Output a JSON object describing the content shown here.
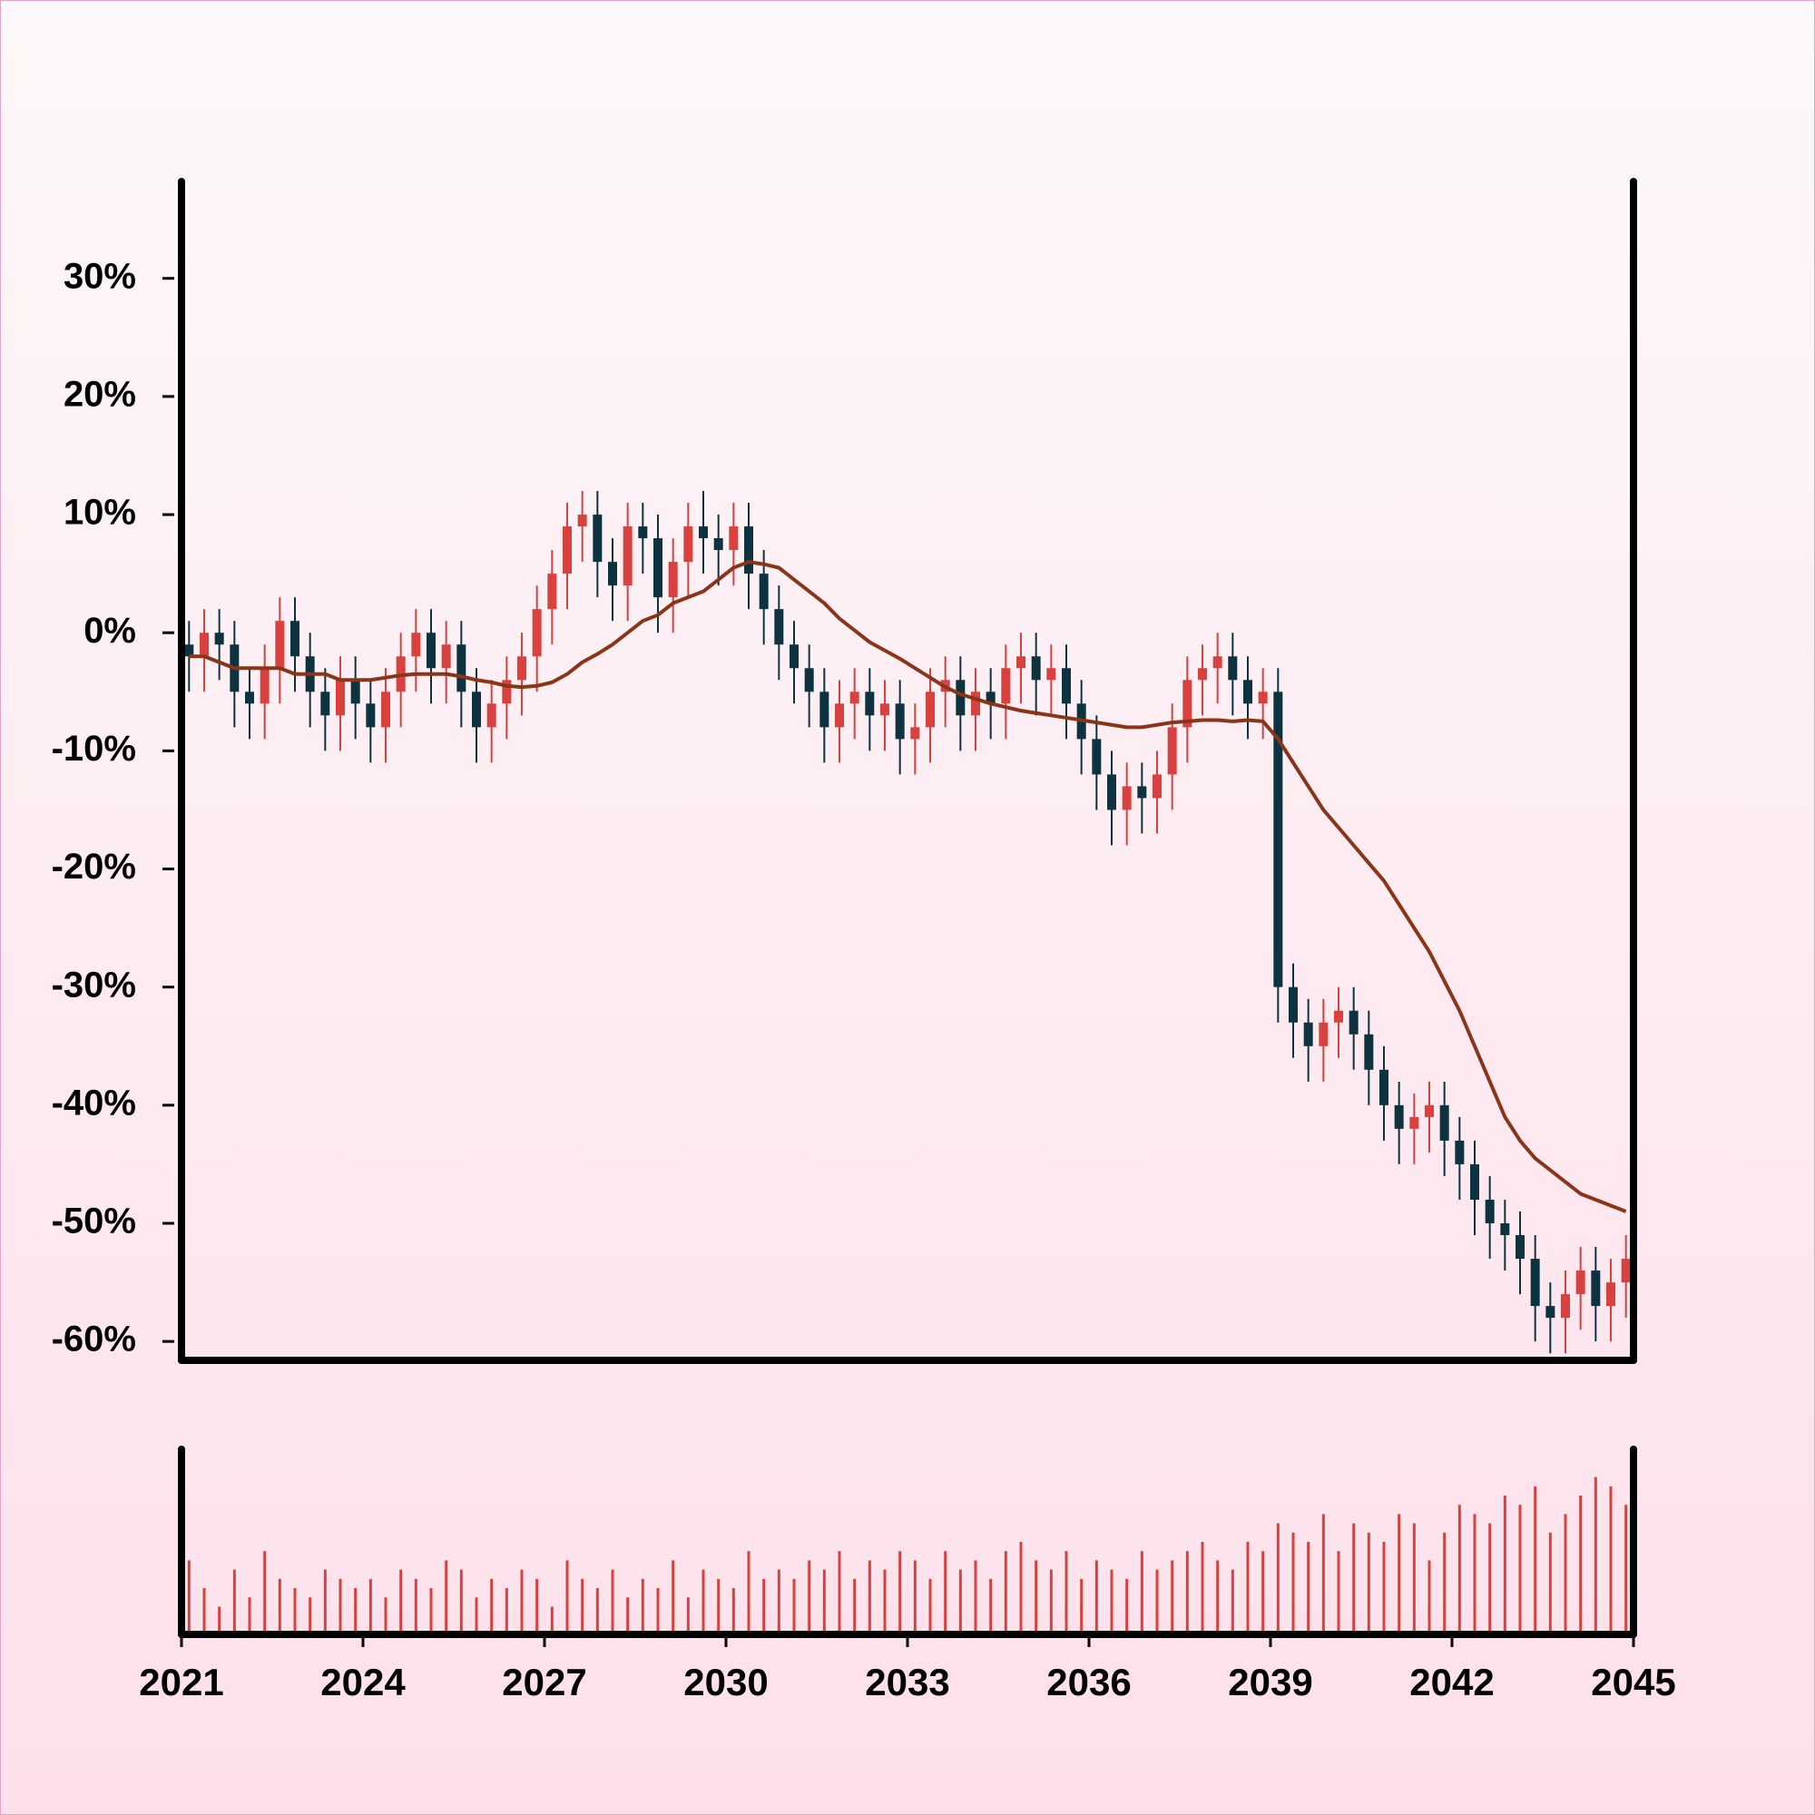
{
  "chart_data": {
    "type": "candlestick",
    "xlim": [
      2021,
      2045
    ],
    "xticks": [
      2021,
      2024,
      2027,
      2030,
      2033,
      2036,
      2039,
      2042,
      2045
    ],
    "ylim": [
      -61.6,
      38.2
    ],
    "yticks": [
      {
        "value": 30,
        "label": "30%"
      },
      {
        "value": 20,
        "label": "20%"
      },
      {
        "value": 10,
        "label": "10%"
      },
      {
        "value": 0,
        "label": "0%"
      },
      {
        "value": -10,
        "label": "-10%"
      },
      {
        "value": -20,
        "label": "-20%"
      },
      {
        "value": -30,
        "label": "-30%"
      },
      {
        "value": -40,
        "label": "-40%"
      },
      {
        "value": -50,
        "label": "-50%"
      },
      {
        "value": -60,
        "label": "-60%"
      }
    ],
    "up_color": "#d9413f",
    "down_color": "#0e3340",
    "x": [
      2021.125,
      2021.375,
      2021.625,
      2021.875,
      2022.125,
      2022.375,
      2022.625,
      2022.875,
      2023.125,
      2023.375,
      2023.625,
      2023.875,
      2024.125,
      2024.375,
      2024.625,
      2024.875,
      2025.125,
      2025.375,
      2025.625,
      2025.875,
      2026.125,
      2026.375,
      2026.625,
      2026.875,
      2027.125,
      2027.375,
      2027.625,
      2027.875,
      2028.125,
      2028.375,
      2028.625,
      2028.875,
      2029.125,
      2029.375,
      2029.625,
      2029.875,
      2030.125,
      2030.375,
      2030.625,
      2030.875,
      2031.125,
      2031.375,
      2031.625,
      2031.875,
      2032.125,
      2032.375,
      2032.625,
      2032.875,
      2033.125,
      2033.375,
      2033.625,
      2033.875,
      2034.125,
      2034.375,
      2034.625,
      2034.875,
      2035.125,
      2035.375,
      2035.625,
      2035.875,
      2036.125,
      2036.375,
      2036.625,
      2036.875,
      2037.125,
      2037.375,
      2037.625,
      2037.875,
      2038.125,
      2038.375,
      2038.625,
      2038.875,
      2039.125,
      2039.375,
      2039.625,
      2039.875,
      2040.125,
      2040.375,
      2040.625,
      2040.875,
      2041.125,
      2041.375,
      2041.625,
      2041.875,
      2042.125,
      2042.375,
      2042.625,
      2042.875,
      2043.125,
      2043.375,
      2043.625,
      2043.875,
      2044.125,
      2044.375,
      2044.625,
      2044.875
    ],
    "open": [
      -1,
      -2,
      0,
      -1,
      -5,
      -6,
      -3,
      1,
      -2,
      -5,
      -7,
      -4,
      -6,
      -8,
      -5,
      -2,
      0,
      -3,
      -1,
      -5,
      -8,
      -6,
      -4,
      -2,
      2,
      5,
      9,
      10,
      6,
      4,
      9,
      8,
      3,
      6,
      9,
      8,
      7,
      9,
      5,
      2,
      -1,
      -3,
      -5,
      -8,
      -6,
      -5,
      -7,
      -6,
      -9,
      -8,
      -5,
      -4,
      -7,
      -5,
      -6,
      -3,
      -2,
      -4,
      -3,
      -6,
      -9,
      -12,
      -15,
      -13,
      -14,
      -12,
      -8,
      -4,
      -3,
      -2,
      -4,
      -6,
      -5,
      -30,
      -33,
      -35,
      -33,
      -32,
      -34,
      -37,
      -40,
      -42,
      -41,
      -40,
      -43,
      -45,
      -48,
      -50,
      -51,
      -53,
      -57,
      -58,
      -56,
      -54,
      -57,
      -55
    ],
    "high": [
      1,
      2,
      2,
      1,
      -3,
      -1,
      3,
      3,
      0,
      -3,
      -2,
      -2,
      -4,
      -3,
      0,
      2,
      2,
      1,
      1,
      -3,
      -4,
      -2,
      0,
      4,
      7,
      11,
      12,
      12,
      8,
      11,
      11,
      10,
      8,
      11,
      12,
      10,
      11,
      11,
      7,
      4,
      1,
      -1,
      -3,
      -4,
      -3,
      -3,
      -4,
      -4,
      -6,
      -3,
      -2,
      -2,
      -3,
      -3,
      -1,
      0,
      0,
      -1,
      -1,
      -4,
      -7,
      -10,
      -11,
      -11,
      -10,
      -6,
      -2,
      -1,
      0,
      0,
      -2,
      -3,
      -3,
      -28,
      -31,
      -31,
      -30,
      -30,
      -32,
      -35,
      -38,
      -39,
      -38,
      -38,
      -41,
      -43,
      -46,
      -48,
      -49,
      -51,
      -55,
      -54,
      -52,
      -52,
      -53,
      -51
    ],
    "low": [
      -5,
      -5,
      -4,
      -8,
      -9,
      -9,
      -6,
      -5,
      -8,
      -10,
      -10,
      -9,
      -11,
      -11,
      -8,
      -5,
      -6,
      -6,
      -8,
      -11,
      -11,
      -9,
      -7,
      -5,
      -1,
      2,
      6,
      3,
      1,
      1,
      5,
      0,
      0,
      3,
      5,
      4,
      4,
      2,
      -1,
      -4,
      -6,
      -8,
      -11,
      -11,
      -9,
      -10,
      -10,
      -12,
      -12,
      -11,
      -8,
      -10,
      -10,
      -9,
      -9,
      -6,
      -7,
      -7,
      -9,
      -12,
      -15,
      -18,
      -18,
      -17,
      -17,
      -15,
      -11,
      -7,
      -6,
      -7,
      -9,
      -9,
      -33,
      -36,
      -38,
      -38,
      -36,
      -37,
      -40,
      -43,
      -45,
      -45,
      -44,
      -46,
      -48,
      -51,
      -53,
      -54,
      -56,
      -60,
      -61,
      -61,
      -59,
      -60,
      -60,
      -58
    ],
    "close": [
      -2,
      0,
      -1,
      -5,
      -6,
      -3,
      1,
      -2,
      -5,
      -7,
      -4,
      -6,
      -8,
      -5,
      -2,
      0,
      -3,
      -1,
      -5,
      -8,
      -6,
      -4,
      -2,
      2,
      5,
      9,
      10,
      6,
      4,
      9,
      8,
      3,
      6,
      9,
      8,
      7,
      9,
      5,
      2,
      -1,
      -3,
      -5,
      -8,
      -6,
      -5,
      -7,
      -6,
      -9,
      -8,
      -5,
      -4,
      -7,
      -5,
      -6,
      -3,
      -2,
      -4,
      -3,
      -6,
      -9,
      -12,
      -15,
      -13,
      -14,
      -12,
      -8,
      -4,
      -3,
      -2,
      -4,
      -6,
      -5,
      -30,
      -33,
      -35,
      -33,
      -32,
      -34,
      -37,
      -40,
      -42,
      -41,
      -40,
      -43,
      -45,
      -48,
      -50,
      -51,
      -53,
      -57,
      -58,
      -56,
      -54,
      -57,
      -55,
      -53
    ],
    "ma": {
      "color": "#8a3418",
      "values": [
        -2,
        -2,
        -2.5,
        -3,
        -3,
        -3,
        -3,
        -3.5,
        -3.5,
        -3.5,
        -4,
        -4,
        -4,
        -3.8,
        -3.6,
        -3.5,
        -3.5,
        -3.5,
        -3.7,
        -4,
        -4.2,
        -4.5,
        -4.6,
        -4.5,
        -4.2,
        -3.5,
        -2.5,
        -1.8,
        -1,
        0,
        1,
        1.5,
        2.5,
        3,
        3.5,
        4.5,
        5.5,
        6,
        5.8,
        5.5,
        4.5,
        3.5,
        2.5,
        1.2,
        0.2,
        -0.8,
        -1.5,
        -2.2,
        -3,
        -3.8,
        -4.6,
        -5.2,
        -5.6,
        -6,
        -6.3,
        -6.6,
        -6.8,
        -7,
        -7.2,
        -7.4,
        -7.6,
        -7.8,
        -8,
        -8,
        -7.8,
        -7.6,
        -7.5,
        -7.4,
        -7.4,
        -7.5,
        -7.4,
        -7.5,
        -9,
        -11,
        -13,
        -15,
        -16.5,
        -18,
        -19.5,
        -21,
        -23,
        -25,
        -27,
        -29.5,
        -32,
        -35,
        -38,
        -41,
        -43,
        -44.5,
        -45.5,
        -46.5,
        -47.5,
        -48,
        -48.5,
        -49
      ]
    },
    "volume": {
      "color": "#d9413f",
      "ylim": [
        0,
        100
      ],
      "values": [
        40,
        25,
        15,
        35,
        20,
        45,
        30,
        25,
        20,
        35,
        30,
        25,
        30,
        20,
        35,
        30,
        25,
        40,
        35,
        20,
        30,
        25,
        35,
        30,
        15,
        40,
        30,
        25,
        35,
        20,
        30,
        25,
        40,
        20,
        35,
        30,
        25,
        45,
        30,
        35,
        30,
        40,
        35,
        45,
        30,
        40,
        35,
        45,
        40,
        30,
        45,
        35,
        40,
        30,
        45,
        50,
        40,
        35,
        45,
        30,
        40,
        35,
        30,
        45,
        35,
        40,
        45,
        50,
        40,
        35,
        50,
        45,
        60,
        55,
        50,
        65,
        45,
        60,
        55,
        50,
        65,
        60,
        40,
        55,
        70,
        65,
        60,
        75,
        70,
        80,
        55,
        65,
        75,
        85,
        80,
        70
      ]
    }
  }
}
